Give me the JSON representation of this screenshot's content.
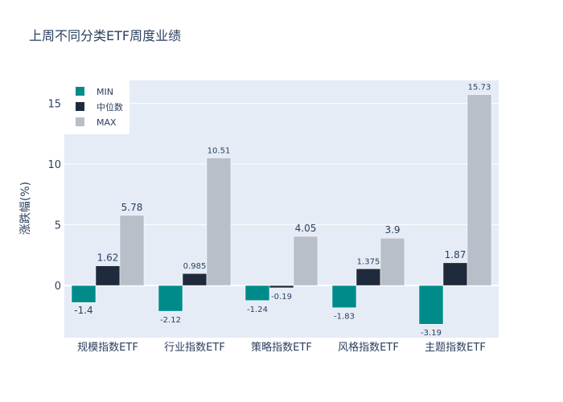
{
  "chart_data": {
    "type": "bar",
    "title": "上周不同分类ETF周度业绩",
    "xlabel": "",
    "ylabel": "涨跌幅(%)",
    "categories": [
      "规模指数ETF",
      "行业指数ETF",
      "策略指数ETF",
      "风格指数ETF",
      "主题指数ETF"
    ],
    "series": [
      {
        "name": "MIN",
        "color": "#008b8b",
        "values": [
          -1.4,
          -2.12,
          -1.24,
          -1.83,
          -3.19
        ],
        "labels": [
          "-1.4",
          "-2.12",
          "-1.24",
          "-1.83",
          "-3.19"
        ]
      },
      {
        "name": "中位数",
        "color": "#1f2a3c",
        "values": [
          1.62,
          0.985,
          -0.19,
          1.375,
          1.87
        ],
        "labels": [
          "1.62",
          "0.985",
          "-0.19",
          "1.375",
          "1.87"
        ]
      },
      {
        "name": "MAX",
        "color": "#b8bfc8",
        "values": [
          5.78,
          10.51,
          4.05,
          3.9,
          15.73
        ],
        "labels": [
          "5.78",
          "10.51",
          "4.05",
          "3.9",
          "15.73"
        ]
      }
    ],
    "ylim": [
      -4.3,
      16.9
    ],
    "yticks": [
      0,
      5,
      10,
      15
    ],
    "grid": true,
    "legend": "top-left",
    "plot_bg": "#e5ecf6"
  }
}
